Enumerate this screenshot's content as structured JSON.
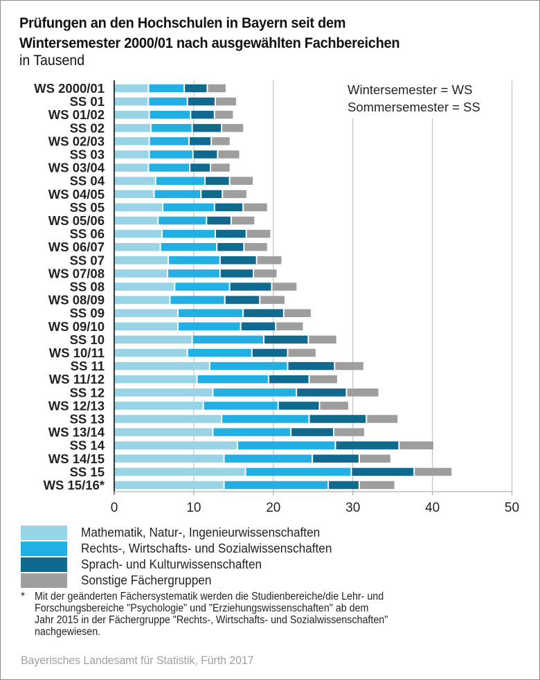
{
  "chart_data": {
    "type": "bar",
    "orientation": "horizontal",
    "stacked": true,
    "title": "Prüfungen an den Hochschulen in Bayern seit dem Wintersemester 2000/01 nach ausgewählten Fachbereichen",
    "title_lines": [
      "Prüfungen an den Hochschulen in Bayern seit dem",
      "Wintersemester 2000/01 nach ausgewählten Fachbereichen"
    ],
    "subtitle": "in Tausend",
    "xlabel": "",
    "ylabel": "",
    "xlim": [
      0,
      50
    ],
    "xticks": [
      0,
      10,
      20,
      30,
      40,
      50
    ],
    "xtick_labels": [
      "0",
      "10",
      "20",
      "30",
      "40",
      "50"
    ],
    "grid": true,
    "categories": [
      "WS 2000/01",
      "SS 01",
      "WS 01/02",
      "SS 02",
      "WS 02/03",
      "SS 03",
      "WS 03/04",
      "SS 04",
      "WS 04/05",
      "SS 05",
      "WS 05/06",
      "SS 06",
      "WS 06/07",
      "SS 07",
      "WS 07/08",
      "SS 08",
      "WS 08/09",
      "SS 09",
      "WS 09/10",
      "SS 10",
      "WS 10/11",
      "SS 11",
      "WS 11/12",
      "SS 12",
      "WS 12/13",
      "SS 13",
      "WS 13/14",
      "SS 14",
      "WS 14/15",
      "SS 15",
      "WS 15/16*"
    ],
    "series": [
      {
        "name": "Mathematik, Natur-, Ingenieurwissenschaften",
        "color": "#98D3E6",
        "values": [
          4.3,
          4.3,
          4.4,
          4.6,
          4.4,
          4.4,
          4.3,
          5.2,
          5.0,
          6.1,
          5.5,
          6.0,
          5.8,
          6.8,
          6.7,
          7.6,
          7.0,
          8.0,
          8.0,
          9.8,
          9.2,
          12.0,
          10.4,
          12.4,
          11.2,
          13.5,
          12.4,
          15.5,
          13.8,
          16.5,
          13.8
        ]
      },
      {
        "name": "Rechts-, Wirtschafts- und Sozialwissenschaften",
        "color": "#22AFE3",
        "values": [
          4.5,
          4.9,
          5.2,
          5.2,
          5.0,
          5.5,
          5.2,
          6.2,
          5.9,
          6.5,
          6.1,
          6.7,
          7.1,
          6.5,
          6.6,
          6.9,
          6.9,
          8.2,
          7.9,
          9.0,
          8.1,
          9.8,
          9.0,
          10.5,
          9.4,
          11.0,
          9.8,
          12.3,
          11.1,
          13.3,
          13.1
        ]
      },
      {
        "name": "Sprach- und Kulturwissenschaften",
        "color": "#106A90",
        "values": [
          2.9,
          3.5,
          3.0,
          3.7,
          2.8,
          3.1,
          2.6,
          3.1,
          2.7,
          3.6,
          3.1,
          3.9,
          3.4,
          4.6,
          4.2,
          5.3,
          4.4,
          5.1,
          4.4,
          5.6,
          4.5,
          5.9,
          5.1,
          6.3,
          5.2,
          7.2,
          5.4,
          8.0,
          5.9,
          7.9,
          3.9
        ]
      },
      {
        "name": "Sonstige Fächergruppen",
        "color": "#9E9E9E",
        "values": [
          2.4,
          2.7,
          2.4,
          2.8,
          2.4,
          2.8,
          2.5,
          3.0,
          3.1,
          3.1,
          3.0,
          3.1,
          3.0,
          3.2,
          3.0,
          3.2,
          3.2,
          3.5,
          3.5,
          3.6,
          3.6,
          3.7,
          3.6,
          4.1,
          3.7,
          4.0,
          3.9,
          4.4,
          4.0,
          4.8,
          4.5
        ]
      }
    ],
    "legend_position": "bottom-left",
    "annotation": [
      "Wintersemester = WS",
      "Sommersemester = SS"
    ]
  },
  "footnote": {
    "marker": "*",
    "text": "Mit der geänderten Fächersystematik werden die Studienbereiche/die Lehr- und\nForschungsbereiche  \"Psychologie\" und \"Erziehungswissenschaften\" ab dem\nJahr 2015 in der Fächergruppe \"Rechts-, Wirtschafts- und Sozialwissenschaften\"\nnachgewiesen."
  },
  "source": "Bayerisches Landesamt für Statistik, Fürth 2017"
}
